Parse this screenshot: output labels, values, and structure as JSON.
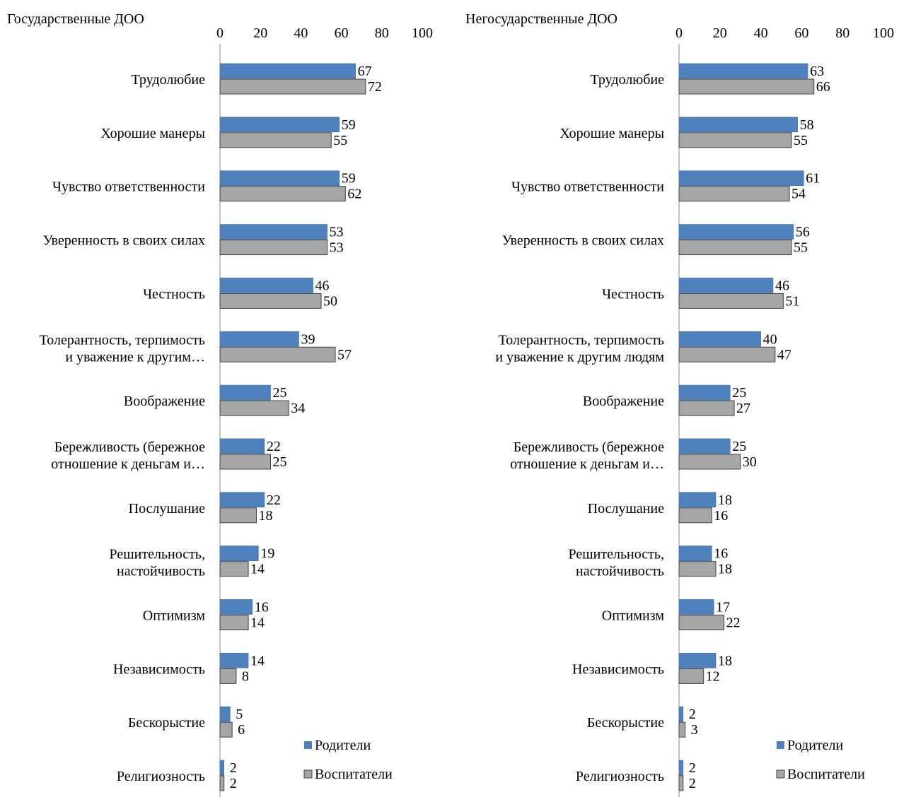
{
  "chart_data": [
    {
      "type": "bar",
      "title": "Государственные ДОО",
      "xlim": [
        0,
        100
      ],
      "ticks": [
        0,
        20,
        40,
        60,
        80,
        100
      ],
      "categories": [
        [
          "Трудолюбие"
        ],
        [
          "Хорошие манеры"
        ],
        [
          "Чувство ответственности"
        ],
        [
          "Уверенность в своих силах"
        ],
        [
          "Честность"
        ],
        [
          "Толерантность, терпимость",
          "и уважение к другим…"
        ],
        [
          "Воображение"
        ],
        [
          "Бережливость (бережное",
          "отношение к деньгам и…"
        ],
        [
          "Послушание"
        ],
        [
          "Решительность,",
          "настойчивость"
        ],
        [
          "Оптимизм"
        ],
        [
          "Независимость"
        ],
        [
          "Бескорыстие"
        ],
        [
          "Религиозность"
        ]
      ],
      "series": [
        {
          "name": "Родители",
          "color": "#4f81bd",
          "values": [
            67,
            59,
            59,
            53,
            46,
            39,
            25,
            22,
            22,
            19,
            16,
            14,
            5,
            2
          ]
        },
        {
          "name": "Воспитатели",
          "color": "#a6a6a6",
          "values": [
            72,
            55,
            62,
            53,
            50,
            57,
            34,
            25,
            18,
            14,
            14,
            8,
            6,
            2
          ]
        }
      ],
      "legend": "bottom-right"
    },
    {
      "type": "bar",
      "title": "Негосударственные ДОО",
      "xlim": [
        0,
        100
      ],
      "ticks": [
        0,
        20,
        40,
        60,
        80,
        100
      ],
      "categories": [
        [
          "Трудолюбие"
        ],
        [
          "Хорошие манеры"
        ],
        [
          "Чувство ответственности"
        ],
        [
          "Уверенность в своих силах"
        ],
        [
          "Честность"
        ],
        [
          "Толерантность, терпимость",
          "и уважение к другим людям"
        ],
        [
          "Воображение"
        ],
        [
          "Бережливость (бережное",
          "отношение к деньгам и…"
        ],
        [
          "Послушание"
        ],
        [
          "Решительность,",
          "настойчивость"
        ],
        [
          "Оптимизм"
        ],
        [
          "Независимость"
        ],
        [
          "Бескорыстие"
        ],
        [
          "Религиозность"
        ]
      ],
      "series": [
        {
          "name": "Родители",
          "color": "#4f81bd",
          "values": [
            63,
            58,
            61,
            56,
            46,
            40,
            25,
            25,
            18,
            16,
            17,
            18,
            2,
            2
          ]
        },
        {
          "name": "Воспитатели",
          "color": "#a6a6a6",
          "values": [
            66,
            55,
            54,
            55,
            51,
            47,
            27,
            30,
            16,
            18,
            22,
            12,
            3,
            2
          ]
        }
      ],
      "legend": "bottom-right"
    }
  ]
}
